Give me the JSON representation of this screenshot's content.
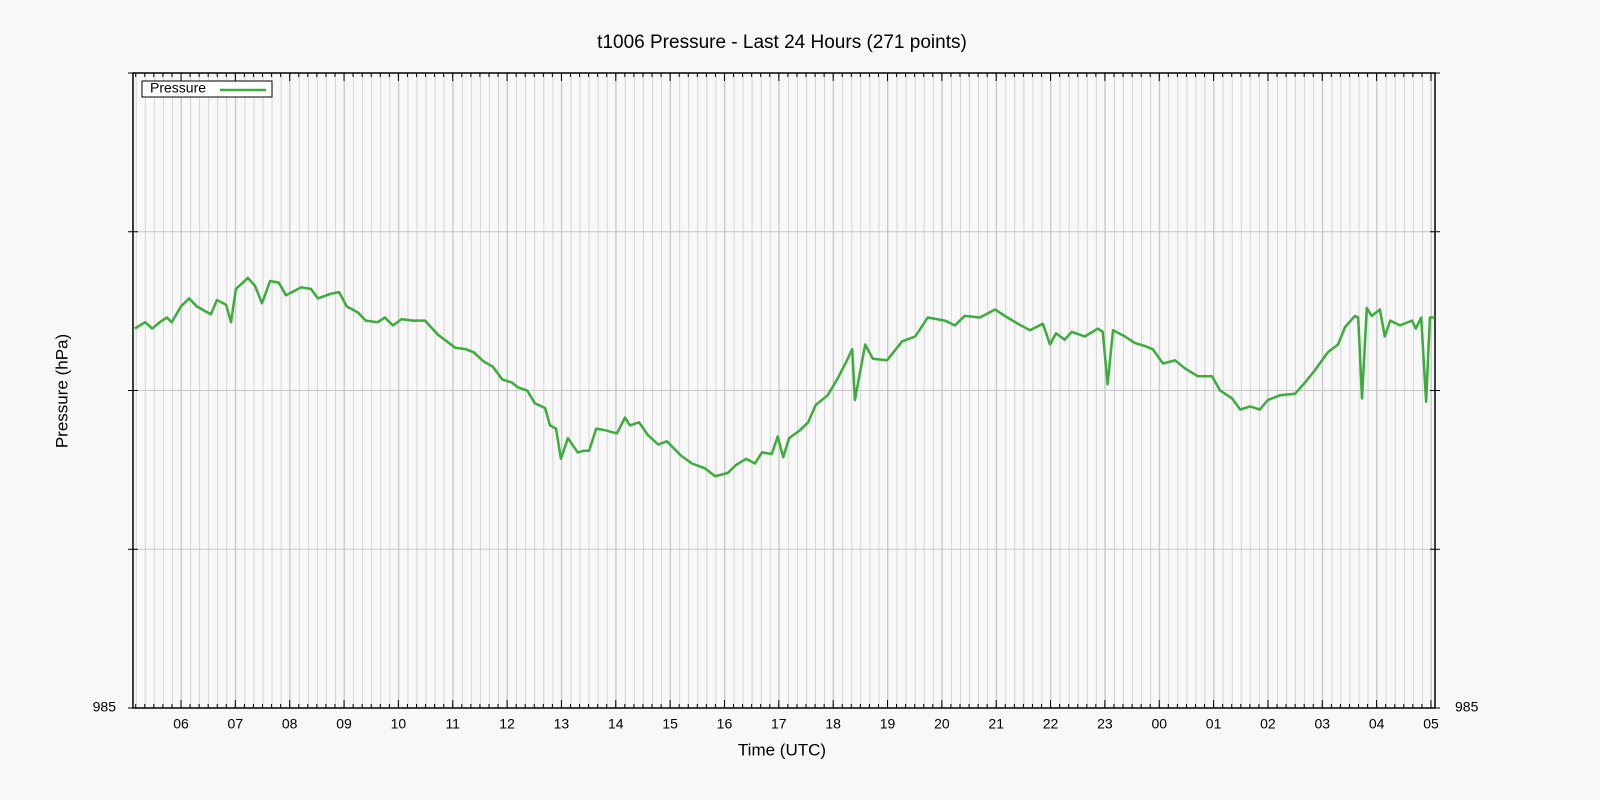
{
  "chart_data": {
    "type": "line",
    "title": "t1006 Pressure - Last 24 Hours (271 points)",
    "x_label": "Time (UTC)",
    "y_label": "Pressure (hPa)",
    "legend": "upper left",
    "grid": true,
    "xlim": [
      5.117,
      29.074
    ],
    "xticks": [
      {
        "value": 6,
        "label": "06"
      },
      {
        "value": 7,
        "label": "07"
      },
      {
        "value": 8,
        "label": "08"
      },
      {
        "value": 9,
        "label": "09"
      },
      10,
      11,
      12,
      13,
      14,
      15,
      16,
      17,
      18,
      19,
      20,
      21,
      22,
      23,
      {
        "value": 24,
        "label": "00"
      },
      {
        "value": 25,
        "label": "01"
      },
      {
        "value": 26,
        "label": "02"
      },
      {
        "value": 27,
        "label": "03"
      },
      {
        "value": 28,
        "label": "04"
      },
      {
        "value": 29,
        "label": "05"
      }
    ],
    "ylim": [
      985,
      989
    ],
    "yticks": [
      985,
      {
        "value": 986,
        "label": null
      },
      {
        "value": 987,
        "label": null
      },
      {
        "value": 988,
        "label": null
      },
      {
        "value": 989,
        "label": null
      }
    ],
    "x": [
      5.15,
      5.34,
      5.47,
      5.61,
      5.74,
      5.83,
      6.0,
      6.15,
      6.29,
      6.55,
      6.66,
      6.83,
      6.92,
      7.01,
      7.14,
      7.23,
      7.36,
      7.49,
      7.64,
      7.8,
      7.93,
      8.1,
      8.21,
      8.39,
      8.52,
      8.76,
      8.91,
      9.05,
      9.26,
      9.4,
      9.62,
      9.75,
      9.9,
      10.06,
      10.27,
      10.49,
      10.73,
      10.89,
      11.04,
      11.24,
      11.39,
      11.58,
      11.74,
      11.91,
      12.09,
      12.2,
      12.37,
      12.51,
      12.7,
      12.79,
      12.9,
      12.99,
      13.12,
      13.3,
      13.41,
      13.51,
      13.64,
      13.8,
      14.02,
      14.17,
      14.26,
      14.43,
      14.59,
      14.78,
      14.94,
      15.2,
      15.4,
      15.64,
      15.83,
      16.06,
      16.21,
      16.4,
      16.56,
      16.69,
      16.87,
      16.98,
      17.08,
      17.19,
      17.39,
      17.54,
      17.68,
      17.9,
      18.09,
      18.24,
      18.35,
      18.4,
      18.59,
      18.73,
      18.99,
      19.27,
      19.51,
      19.74,
      20.06,
      20.24,
      20.42,
      20.7,
      20.98,
      21.16,
      21.4,
      21.62,
      21.86,
      21.99,
      22.1,
      22.26,
      22.39,
      22.63,
      22.87,
      22.96,
      23.05,
      23.15,
      23.37,
      23.55,
      23.74,
      23.88,
      24.07,
      24.29,
      24.47,
      24.71,
      24.97,
      25.12,
      25.34,
      25.49,
      25.67,
      25.85,
      26.0,
      26.22,
      26.5,
      26.68,
      26.87,
      27.1,
      27.29,
      27.42,
      27.6,
      27.66,
      27.73,
      27.82,
      27.91,
      28.06,
      28.15,
      28.25,
      28.43,
      28.65,
      28.72,
      28.82,
      28.91,
      28.98,
      29.07
    ],
    "series": [
      {
        "name": "Pressure",
        "color": "#3cac3c",
        "values": [
          987.39,
          987.43,
          987.39,
          987.43,
          987.46,
          987.43,
          987.53,
          987.58,
          987.53,
          987.48,
          987.57,
          987.54,
          987.43,
          987.64,
          987.68,
          987.71,
          987.66,
          987.55,
          987.69,
          987.68,
          987.6,
          987.63,
          987.65,
          987.64,
          987.58,
          987.61,
          987.62,
          987.53,
          987.49,
          987.44,
          987.43,
          987.46,
          987.41,
          987.45,
          987.44,
          987.44,
          987.35,
          987.31,
          987.27,
          987.26,
          987.24,
          987.18,
          987.15,
          987.07,
          987.05,
          987.02,
          987.0,
          986.92,
          986.89,
          986.78,
          986.76,
          986.57,
          986.7,
          986.61,
          986.62,
          986.62,
          986.76,
          986.75,
          986.73,
          986.83,
          986.78,
          986.8,
          986.72,
          986.66,
          986.68,
          986.59,
          986.54,
          986.51,
          986.46,
          986.48,
          986.53,
          986.57,
          986.54,
          986.61,
          986.6,
          986.71,
          986.58,
          986.7,
          986.75,
          986.8,
          986.91,
          986.97,
          987.08,
          987.18,
          987.26,
          986.94,
          987.29,
          987.2,
          987.19,
          987.31,
          987.34,
          987.46,
          987.44,
          987.41,
          987.47,
          987.46,
          987.51,
          987.47,
          987.42,
          987.38,
          987.42,
          987.29,
          987.36,
          987.32,
          987.37,
          987.34,
          987.39,
          987.37,
          987.04,
          987.38,
          987.34,
          987.3,
          987.28,
          987.26,
          987.17,
          987.19,
          987.14,
          987.09,
          987.09,
          987.0,
          986.95,
          986.88,
          986.9,
          986.88,
          986.94,
          986.97,
          986.98,
          987.05,
          987.13,
          987.24,
          987.29,
          987.4,
          987.47,
          987.46,
          986.95,
          987.52,
          987.47,
          987.51,
          987.34,
          987.44,
          987.41,
          987.44,
          987.39,
          987.46,
          986.93,
          987.46,
          987.46
        ]
      }
    ]
  }
}
